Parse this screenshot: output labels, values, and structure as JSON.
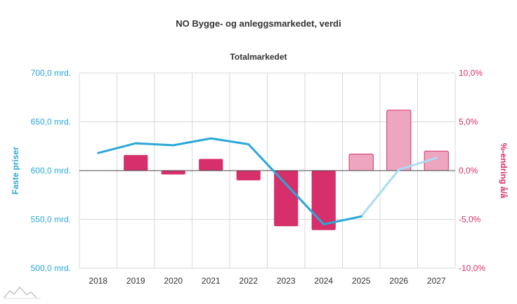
{
  "chart_data": {
    "type": "bar",
    "title": "NO Bygge- og anleggsmarkedet, verdi",
    "subtitle": "Totalmarkedet",
    "categories": [
      "2018",
      "2019",
      "2020",
      "2021",
      "2022",
      "2023",
      "2024",
      "2025",
      "2026",
      "2027"
    ],
    "forecast_from": "2025",
    "y_left": {
      "label": "Faste priser",
      "ticks": [
        "500,0 mrd.",
        "550,0 mrd.",
        "600,0 mrd.",
        "650,0 mrd.",
        "700,0 mrd."
      ],
      "ylim": [
        500,
        700
      ]
    },
    "y_right": {
      "label": "%-endring å/å",
      "ticks": [
        "-10,0%",
        "-5,0%",
        "0,0%",
        "5,0%",
        "10,0%"
      ],
      "ylim": [
        -10,
        10
      ]
    },
    "series": [
      {
        "kind": "line",
        "axis": "left",
        "values": [
          618,
          628,
          626,
          633,
          627,
          586,
          545,
          553,
          601,
          613
        ]
      },
      {
        "kind": "bar",
        "axis": "right",
        "values": [
          null,
          1.6,
          -0.4,
          1.2,
          -1.0,
          -5.7,
          -6.1,
          1.7,
          6.2,
          2.0
        ]
      }
    ],
    "colors": {
      "line": "#2aa7d8",
      "line_forecast": "#a9dcf1",
      "bar": "#d62f6b",
      "bar_forecast": "#eea6c0",
      "grid": "#d8d8d8"
    },
    "grid": true
  }
}
